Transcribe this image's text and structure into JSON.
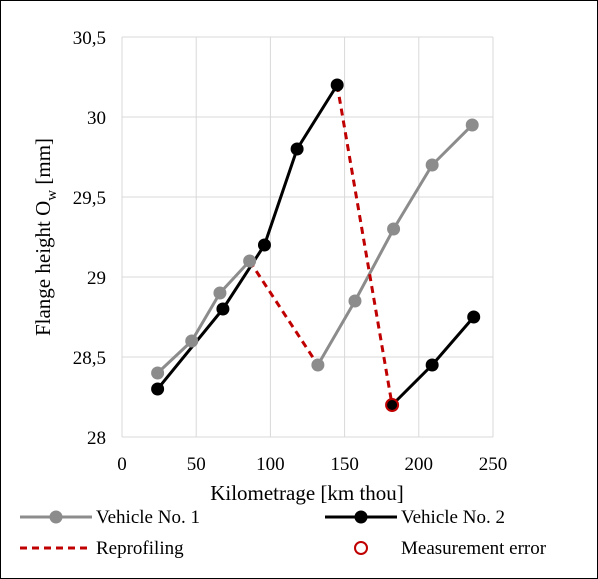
{
  "chart_data": {
    "type": "line",
    "xlabel": "Kilometrage [km thou]",
    "ylabel": "Flange height O",
    "ylabel_sub": "w",
    "ylabel_unit": " [mm]",
    "xlim": [
      0,
      250
    ],
    "ylim": [
      28,
      30.5
    ],
    "x_ticks": [
      0,
      50,
      100,
      150,
      200,
      250
    ],
    "x_tick_labels": [
      "0",
      "50",
      "100",
      "150",
      "200",
      "250"
    ],
    "y_ticks": [
      28,
      28.5,
      29,
      29.5,
      30,
      30.5
    ],
    "y_tick_labels": [
      "28",
      "28,5",
      "29",
      "29,5",
      "30",
      "30,5"
    ],
    "grid": true,
    "legend_position": "bottom",
    "series": [
      {
        "name": "Vehicle No. 1",
        "color": "#8c8c8c",
        "style": "solid-marker",
        "segments": [
          [
            [
              24,
              28.4
            ],
            [
              47,
              28.6
            ],
            [
              66,
              28.9
            ],
            [
              86,
              29.1
            ]
          ],
          [
            [
              132,
              28.45
            ],
            [
              157,
              28.85
            ],
            [
              183,
              29.3
            ],
            [
              209,
              29.7
            ],
            [
              236,
              29.95
            ]
          ]
        ]
      },
      {
        "name": "Vehicle No. 2",
        "color": "#000000",
        "style": "solid-marker",
        "segments": [
          [
            [
              24,
              28.3
            ],
            [
              68,
              28.8
            ],
            [
              96,
              29.2
            ],
            [
              118,
              29.8
            ],
            [
              145,
              30.2
            ]
          ],
          [
            [
              182,
              28.2
            ],
            [
              209,
              28.45
            ],
            [
              237,
              28.75
            ]
          ]
        ]
      },
      {
        "name": "Reprofiling",
        "color": "#c00000",
        "style": "dashed",
        "segments": [
          [
            [
              86,
              29.1
            ],
            [
              132,
              28.45
            ]
          ],
          [
            [
              145,
              30.2
            ],
            [
              182,
              28.2
            ]
          ]
        ]
      },
      {
        "name": "Measurement error",
        "color": "#c00000",
        "style": "open-marker",
        "segments": [
          [
            [
              182,
              28.2
            ]
          ]
        ]
      }
    ]
  }
}
